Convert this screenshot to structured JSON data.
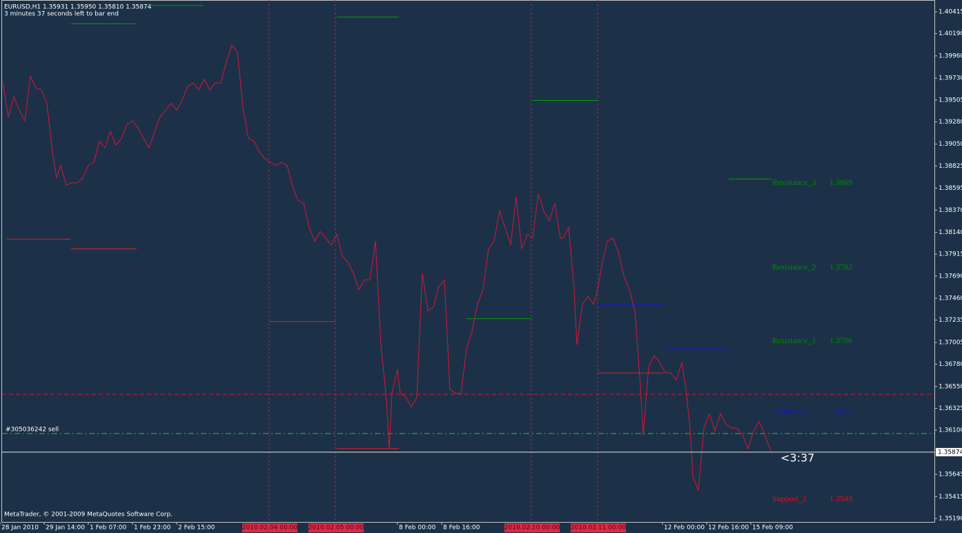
{
  "header": {
    "title": "EURUSD,H1  1.35931 1.35950 1.35810 1.35874",
    "timer": "3 minutes 37 seconds left to bar end"
  },
  "footer": "MetaTrader, © 2001-2009 MetaQuotes Software Corp.",
  "chart_data": {
    "type": "line",
    "color": "#dc143c",
    "grid": false,
    "x": [
      1,
      3,
      5,
      7,
      9,
      11,
      13,
      15,
      17,
      19,
      20.5,
      22,
      24,
      26,
      28,
      30,
      32,
      34,
      36,
      38,
      40,
      42,
      44,
      46,
      48,
      50,
      52,
      54,
      56,
      58,
      60,
      62,
      64,
      66,
      68,
      70,
      72,
      74,
      76,
      78,
      80,
      82,
      84,
      86,
      88,
      90,
      92,
      94,
      96,
      98,
      100,
      102,
      104,
      106,
      108,
      110,
      112,
      114,
      116,
      118,
      120,
      122,
      124,
      126,
      128,
      130,
      132,
      134,
      136,
      138,
      140,
      141,
      142,
      144,
      145,
      147,
      149,
      151,
      153,
      155,
      157,
      159,
      161,
      163,
      165,
      167,
      169,
      171,
      173,
      175,
      177,
      179,
      181,
      183,
      185,
      187,
      189,
      191,
      193,
      195,
      197,
      199,
      201,
      203,
      204,
      206,
      208,
      209,
      211,
      213,
      215,
      216.5,
      218,
      220,
      222,
      224,
      226,
      228,
      230,
      232,
      233,
      235,
      237,
      239,
      241,
      243,
      245,
      247,
      248.5,
      250,
      251,
      253,
      255,
      257,
      259,
      261,
      263,
      265,
      267,
      269,
      271,
      273,
      275,
      276.5,
      278,
      279.5
    ],
    "values": [
      1.397,
      1.3933,
      1.3954,
      1.394,
      1.3929,
      1.3975,
      1.3963,
      1.3961,
      1.3947,
      1.3897,
      1.387,
      1.3883,
      1.3863,
      1.3865,
      1.3865,
      1.387,
      1.3883,
      1.3886,
      1.3908,
      1.3901,
      1.3918,
      1.3904,
      1.3911,
      1.3925,
      1.3929,
      1.3922,
      1.3911,
      1.3901,
      1.3918,
      1.3933,
      1.394,
      1.3947,
      1.394,
      1.395,
      1.3965,
      1.3968,
      1.3961,
      1.3972,
      1.3961,
      1.3968,
      1.3968,
      1.399,
      1.4007,
      1.4,
      1.3943,
      1.3911,
      1.3908,
      1.3897,
      1.389,
      1.3886,
      1.3883,
      1.3886,
      1.3883,
      1.3861,
      1.3847,
      1.3844,
      1.3819,
      1.3805,
      1.3815,
      1.3808,
      1.3801,
      1.3812,
      1.379,
      1.3783,
      1.3772,
      1.3755,
      1.3765,
      1.3765,
      1.3805,
      1.3698,
      1.3641,
      1.3591,
      1.3648,
      1.3673,
      1.3648,
      1.3644,
      1.3634,
      1.3644,
      1.3772,
      1.3733,
      1.3737,
      1.3758,
      1.3765,
      1.3652,
      1.3648,
      1.3648,
      1.3694,
      1.3712,
      1.374,
      1.3755,
      1.3797,
      1.3805,
      1.3836,
      1.3819,
      1.3801,
      1.3851,
      1.3797,
      1.3812,
      1.3808,
      1.3854,
      1.3836,
      1.3826,
      1.3844,
      1.3808,
      1.3808,
      1.3819,
      1.3755,
      1.3698,
      1.374,
      1.3748,
      1.374,
      1.3755,
      1.378,
      1.3805,
      1.3808,
      1.3794,
      1.3769,
      1.3755,
      1.3733,
      1.3655,
      1.3605,
      1.3676,
      1.3687,
      1.368,
      1.3669,
      1.3669,
      1.3662,
      1.368,
      1.3652,
      1.3612,
      1.3562,
      1.3548,
      1.3612,
      1.3627,
      1.3609,
      1.3627,
      1.3616,
      1.3612,
      1.3612,
      1.3605,
      1.3591,
      1.3609,
      1.3619,
      1.3609,
      1.3598,
      1.3587
    ],
    "xlim": [
      0,
      338.5
    ],
    "ylim": [
      1.35154,
      1.40536
    ],
    "yticks": [
      1.40415,
      {
        "value": 1.4019,
        "label": "1.40190"
      },
      {
        "value": 1.3996,
        "label": "1.39960"
      },
      {
        "value": 1.3973,
        "label": "1.39730"
      },
      1.39505,
      {
        "value": 1.3928,
        "label": "1.39280"
      },
      {
        "value": 1.3905,
        "label": "1.39050"
      },
      1.38825,
      1.38595,
      {
        "value": 1.3837,
        "label": "1.38370"
      },
      {
        "value": 1.3814,
        "label": "1.38140"
      },
      1.37915,
      {
        "value": 1.3769,
        "label": "1.37690"
      },
      {
        "value": 1.3746,
        "label": "1.37460"
      },
      1.37235,
      1.37005,
      {
        "value": 1.3678,
        "label": "1.36780"
      },
      {
        "value": 1.3655,
        "label": "1.36550"
      },
      1.36325,
      {
        "value": 1.361,
        "label": "1.36100"
      },
      1.35645,
      1.35415,
      {
        "value": 1.3519,
        "label": "1.35190"
      }
    ],
    "xticks": [
      {
        "value": 0,
        "label": "28 Jan 2010"
      },
      {
        "value": 16,
        "label": "29 Jan 14:00"
      },
      {
        "value": 32,
        "label": "1 Feb 07:00"
      },
      {
        "value": 48,
        "label": "1 Feb 23:00"
      },
      {
        "value": 64,
        "label": "2 Feb 15:00"
      },
      {
        "value": 144,
        "label": "8 Feb 00:00"
      },
      {
        "value": 160,
        "label": "8 Feb 16:00"
      },
      {
        "value": 240,
        "label": "12 Feb 00:00"
      },
      {
        "value": 256,
        "label": "12 Feb 16:00"
      },
      {
        "value": 272,
        "label": "15 Feb 09:00"
      }
    ],
    "period_separators": [
      {
        "x": 97.5,
        "label": "2010.02.04 00:00"
      },
      {
        "x": 121.5,
        "label": "2010.02.05 00:00"
      },
      {
        "x": 192.5,
        "label": "2010.02.10 00:00"
      },
      {
        "x": 216.5,
        "label": "2010.02.11 00:00"
      }
    ],
    "levels": [
      {
        "x": [
          52.5,
          73.5
        ],
        "value": 1.4048,
        "color": "#00a000"
      },
      {
        "x": [
          25.75,
          49.5
        ],
        "value": 1.4029,
        "color": "#00a000"
      },
      {
        "x": [
          122,
          144.5
        ],
        "value": 1.4036,
        "color": "#00a000"
      },
      {
        "x": [
          193,
          216.5
        ],
        "value": 1.395,
        "color": "#00a000"
      },
      {
        "x": [
          264,
          279.5
        ],
        "value": 1.3869,
        "color": "#00a000"
      },
      {
        "x": [
          169,
          192.5
        ],
        "value": 1.3725,
        "color": "#00a000"
      },
      {
        "x": [
          2.5,
          25.5
        ],
        "value": 1.3807,
        "color": "#e0202c"
      },
      {
        "x": [
          25.75,
          49.5
        ],
        "value": 1.3797,
        "color": "#e0202c"
      },
      {
        "x": [
          97.5,
          121.5
        ],
        "value": 1.3722,
        "color": "#e0202c"
      },
      {
        "x": [
          122,
          144.5
        ],
        "value": 1.3591,
        "color": "#e0202c"
      },
      {
        "x": [
          216.5,
          240.5
        ],
        "value": 1.3669,
        "color": "#e0202c"
      },
      {
        "x": [
          216.5,
          240.5
        ],
        "value": 1.374,
        "color": "#1010e0"
      },
      {
        "x": [
          241,
          263.5
        ],
        "value": 1.3694,
        "color": "#1010e0"
      }
    ],
    "hlines": [
      {
        "value": 1.3647,
        "color": "#dc143c",
        "style": "dash"
      },
      {
        "value": 1.36065,
        "color": "#30c030",
        "style": "dashdot",
        "label": "#305036242 sell"
      }
    ],
    "pivots": [
      {
        "name": "Resistance_3",
        "value": 1.3869,
        "color": "#008a00"
      },
      {
        "name": "Resistance_2",
        "value": 1.3782,
        "color": "#008a00"
      },
      {
        "name": "Resistance_1",
        "value": 1.3706,
        "color": "#008a00"
      },
      {
        "name": "PivotPoint",
        "value": 1.3633,
        "color": "#1414d0"
      },
      {
        "name": "Support_1",
        "value": 1.3543,
        "color": "#e0101c"
      }
    ],
    "current_price": 1.35874,
    "countdown": "<3:37"
  }
}
